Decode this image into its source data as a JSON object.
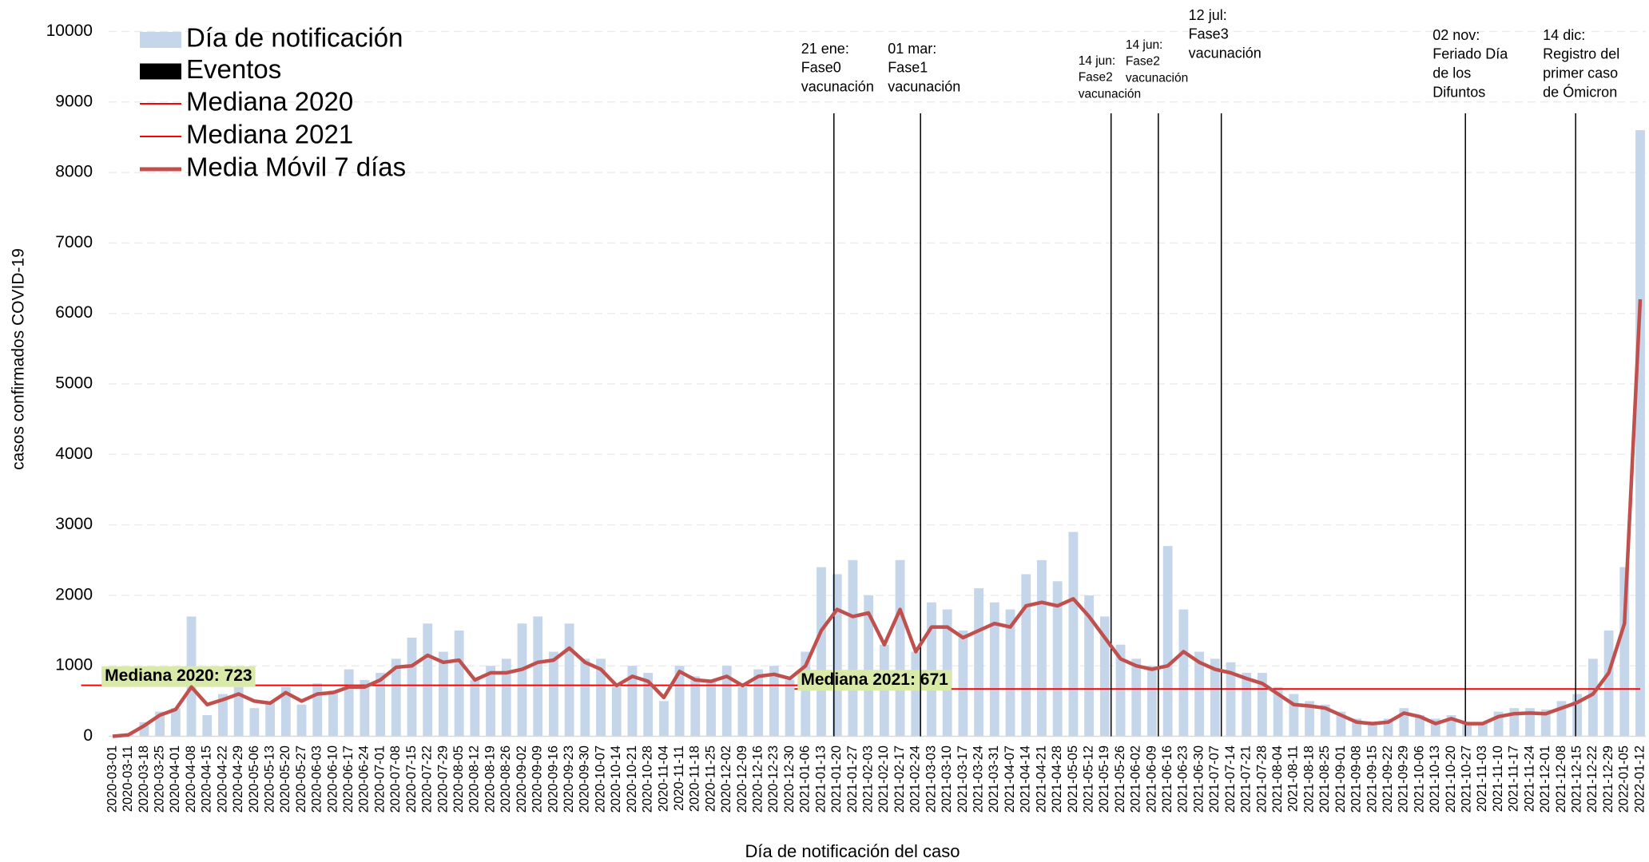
{
  "chart_data": {
    "type": "bar-line",
    "y_label": "casos confirmados COVID-19",
    "x_label": "Día de notificación del caso",
    "ylim": [
      0,
      10000
    ],
    "yticks": [
      0,
      1000,
      2000,
      3000,
      4000,
      5000,
      6000,
      7000,
      8000,
      9000,
      10000
    ],
    "grid": true,
    "legend": "top-left",
    "categories": [
      "2020-03-01",
      "2020-03-11",
      "2020-03-18",
      "2020-03-25",
      "2020-04-01",
      "2020-04-08",
      "2020-04-15",
      "2020-04-22",
      "2020-04-29",
      "2020-05-06",
      "2020-05-13",
      "2020-05-20",
      "2020-05-27",
      "2020-06-03",
      "2020-06-10",
      "2020-06-17",
      "2020-06-24",
      "2020-07-01",
      "2020-07-08",
      "2020-07-15",
      "2020-07-22",
      "2020-07-29",
      "2020-08-05",
      "2020-08-12",
      "2020-08-19",
      "2020-08-26",
      "2020-09-02",
      "2020-09-09",
      "2020-09-16",
      "2020-09-23",
      "2020-09-30",
      "2020-10-07",
      "2020-10-14",
      "2020-10-21",
      "2020-10-28",
      "2020-11-04",
      "2020-11-11",
      "2020-11-18",
      "2020-11-25",
      "2020-12-02",
      "2020-12-09",
      "2020-12-16",
      "2020-12-23",
      "2020-12-30",
      "2021-01-06",
      "2021-01-13",
      "2021-01-20",
      "2021-01-27",
      "2021-02-03",
      "2021-02-10",
      "2021-02-17",
      "2021-02-24",
      "2021-03-03",
      "2021-03-10",
      "2021-03-17",
      "2021-03-24",
      "2021-03-31",
      "2021-04-07",
      "2021-04-14",
      "2021-04-21",
      "2021-04-28",
      "2021-05-05",
      "2021-05-12",
      "2021-05-19",
      "2021-05-26",
      "2021-06-02",
      "2021-06-09",
      "2021-06-16",
      "2021-06-23",
      "2021-06-30",
      "2021-07-07",
      "2021-07-14",
      "2021-07-21",
      "2021-07-28",
      "2021-08-04",
      "2021-08-11",
      "2021-08-18",
      "2021-08-25",
      "2021-09-01",
      "2021-09-08",
      "2021-09-15",
      "2021-09-22",
      "2021-09-29",
      "2021-10-06",
      "2021-10-13",
      "2021-10-20",
      "2021-10-27",
      "2021-11-03",
      "2021-11-10",
      "2021-11-17",
      "2021-11-24",
      "2021-12-01",
      "2021-12-08",
      "2021-12-15",
      "2021-12-22",
      "2021-12-29",
      "2022-01-05",
      "2022-01-12"
    ],
    "series": [
      {
        "name": "Día de notificación",
        "color": "#c5d6ea",
        "values": [
          0,
          30,
          200,
          350,
          400,
          1700,
          300,
          600,
          700,
          400,
          500,
          700,
          450,
          750,
          650,
          950,
          800,
          900,
          1100,
          1400,
          1600,
          1200,
          1500,
          800,
          1000,
          1100,
          1600,
          1700,
          1200,
          1600,
          1100,
          1100,
          700,
          1000,
          900,
          500,
          1000,
          850,
          800,
          1000,
          700,
          950,
          1000,
          800,
          1200,
          2400,
          2300,
          2500,
          2000,
          1300,
          2500,
          1200,
          1900,
          1800,
          1500,
          2100,
          1900,
          1800,
          2300,
          2500,
          2200,
          2900,
          2000,
          1700,
          1300,
          1100,
          1000,
          2700,
          1800,
          1200,
          1100,
          1050,
          900,
          900,
          700,
          600,
          500,
          450,
          350,
          250,
          200,
          250,
          400,
          300,
          250,
          300,
          200,
          200,
          350,
          400,
          400,
          380,
          500,
          600,
          1100,
          1500,
          2400,
          8600
        ]
      },
      {
        "name": "Eventos",
        "color": "#000000"
      },
      {
        "name": "Mediana 2020",
        "color": "#ff0000",
        "value": 723,
        "label": "Mediana 2020: 723"
      },
      {
        "name": "Mediana 2021",
        "color": "#ff0000",
        "value": 671,
        "label": "Mediana 2021: 671"
      },
      {
        "name": "Media Móvil 7 días",
        "color": "#c0504d",
        "values": [
          0,
          20,
          150,
          300,
          380,
          700,
          450,
          520,
          600,
          500,
          470,
          620,
          500,
          600,
          620,
          700,
          700,
          800,
          980,
          1000,
          1150,
          1050,
          1080,
          800,
          900,
          900,
          950,
          1050,
          1080,
          1250,
          1050,
          950,
          720,
          850,
          780,
          550,
          920,
          800,
          780,
          850,
          720,
          850,
          880,
          820,
          1000,
          1500,
          1800,
          1700,
          1750,
          1300,
          1800,
          1200,
          1550,
          1550,
          1400,
          1500,
          1600,
          1550,
          1850,
          1900,
          1850,
          1950,
          1700,
          1400,
          1100,
          1000,
          950,
          1000,
          1200,
          1050,
          950,
          900,
          820,
          750,
          600,
          450,
          430,
          400,
          300,
          200,
          180,
          200,
          330,
          280,
          180,
          250,
          180,
          180,
          280,
          320,
          330,
          320,
          400,
          480,
          600,
          900,
          1600,
          6200
        ]
      }
    ],
    "events": [
      {
        "x": 45.8,
        "label": [
          "21 ene:",
          "Fase0",
          "vacunación"
        ]
      },
      {
        "x": 51.3,
        "label": [
          "01 mar:",
          "Fase1",
          "vacunación"
        ]
      },
      {
        "x": 63.4,
        "label": [
          "14 jun:",
          "Fase2",
          "vacunación"
        ]
      },
      {
        "x": 66.4,
        "label": [
          "14 jun:",
          "Fase2",
          "vacunación"
        ]
      },
      {
        "x": 70.4,
        "label": [
          "12 jul:",
          "Fase3",
          "vacunación"
        ]
      },
      {
        "x": 85.9,
        "label": [
          "02 nov:",
          "Feriado Día",
          "de los",
          "Difuntos"
        ]
      },
      {
        "x": 92.9,
        "label": [
          "14 dic:",
          "Registro del",
          "primer caso",
          "de Ómicron"
        ]
      }
    ]
  }
}
